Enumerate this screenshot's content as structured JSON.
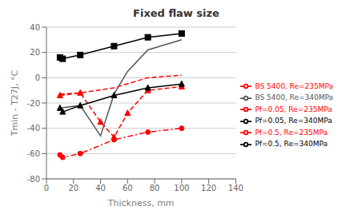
{
  "chart_data": {
    "type": "line",
    "title": "Fixed flaw size",
    "x_label": "Thickness, mm",
    "y_label": "Tmin - T27J, °C",
    "xlim": [
      0,
      140
    ],
    "ylim": [
      -80,
      40
    ],
    "xticks": [
      0,
      20,
      40,
      60,
      80,
      100,
      120,
      140
    ],
    "yticks": [
      -80,
      -60,
      -40,
      -20,
      0,
      20,
      40
    ],
    "grid": "y",
    "legend": "right",
    "series": [
      {
        "name": "Pf=0.05, Re=340MPa",
        "x": [
          10,
          12,
          25,
          50,
          75,
          100
        ],
        "values": [
          16,
          15,
          18,
          25,
          32,
          35
        ],
        "color": "#000000",
        "line_style": "solid",
        "marker": "square"
      },
      {
        "name": "BS 5400, Re=340MPa",
        "x": [
          10,
          25,
          40,
          50,
          60,
          75,
          100
        ],
        "values": [
          -24,
          -22,
          -46,
          -13,
          5,
          22,
          30
        ],
        "color": "#555555",
        "line_style": "solid",
        "marker": "none"
      },
      {
        "name": "BS 5400, Re=235MPa",
        "x": [
          10,
          25,
          50,
          75,
          100
        ],
        "values": [
          -13,
          -12,
          -8,
          0,
          2
        ],
        "color": "#ff0000",
        "line_style": "dashed",
        "marker": "none"
      },
      {
        "name": "Pf=0.05, Re=235MPa",
        "x": [
          10,
          25,
          40,
          50,
          60,
          75,
          100
        ],
        "values": [
          -14,
          -12,
          -35,
          -47,
          -28,
          -10,
          -7
        ],
        "color": "#ff0000",
        "line_style": "dashed",
        "marker": "triangle"
      },
      {
        "name": "Pf=0.5, Re=340MPa",
        "x": [
          10,
          12,
          25,
          50,
          75,
          100
        ],
        "values": [
          -24,
          -27,
          -22,
          -14,
          -8,
          -5
        ],
        "color": "#000000",
        "line_style": "solid",
        "marker": "triangle"
      },
      {
        "name": "Pf=0.5, Re=235MPa",
        "x": [
          10,
          12,
          25,
          50,
          75,
          100
        ],
        "values": [
          -61,
          -63,
          -60,
          -49,
          -43,
          -40
        ],
        "color": "#ff0000",
        "line_style": "dashdot",
        "marker": "circle"
      }
    ]
  }
}
